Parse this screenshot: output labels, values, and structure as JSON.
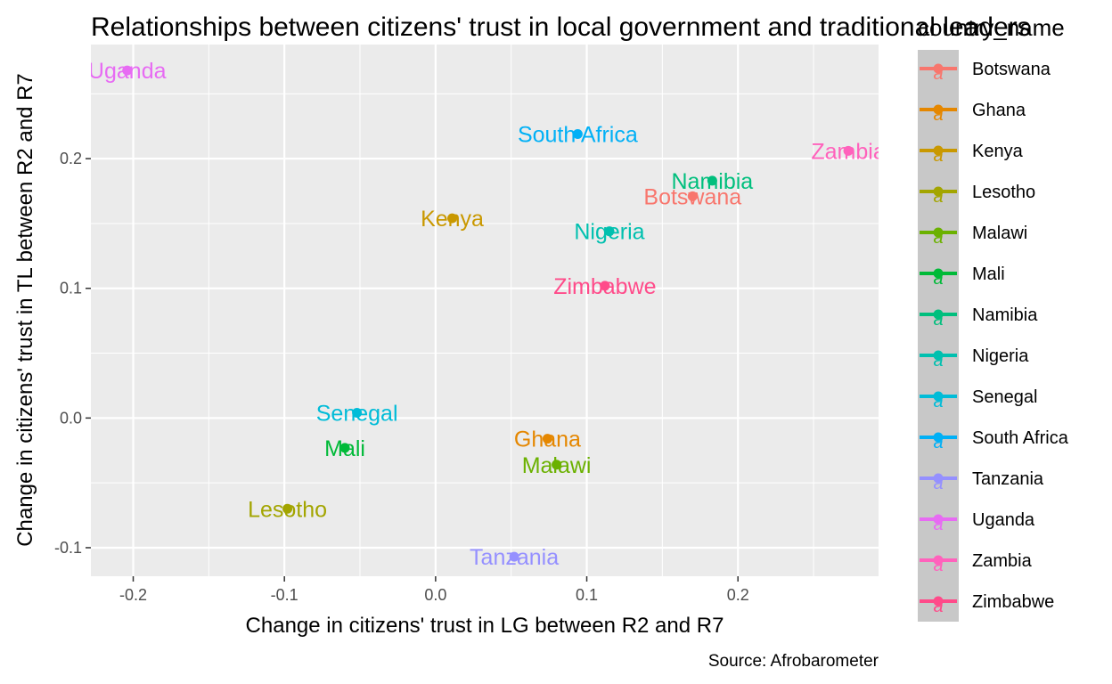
{
  "chart_data": {
    "type": "scatter",
    "title": "Relationships between citizens' trust in local government and traditional leaders",
    "xlabel": "Change in citizens' trust in LG between R2 and R7",
    "ylabel": "Change in citizens' trust in TL between R2 and R7",
    "caption": "Source: Afrobarometer",
    "xlim": [
      -0.228,
      0.293
    ],
    "ylim": [
      -0.122,
      0.288
    ],
    "x_ticks": [
      -0.2,
      -0.1,
      0.0,
      0.1,
      0.2
    ],
    "x_tick_labels": [
      "-0.2",
      "-0.1",
      "0.0",
      "0.1",
      "0.2"
    ],
    "y_ticks": [
      -0.1,
      0.0,
      0.1,
      0.2
    ],
    "y_tick_labels": [
      "-0.1",
      "0.0",
      "0.1",
      "0.2"
    ],
    "grid": true,
    "legend": {
      "title": "country_name",
      "position": "right"
    },
    "points": [
      {
        "country": "Botswana",
        "x": 0.17,
        "y": 0.171,
        "color": "#F8766D"
      },
      {
        "country": "Ghana",
        "x": 0.074,
        "y": -0.016,
        "color": "#E58700"
      },
      {
        "country": "Kenya",
        "x": 0.011,
        "y": 0.154,
        "color": "#C99800"
      },
      {
        "country": "Lesotho",
        "x": -0.098,
        "y": -0.07,
        "color": "#A3A500"
      },
      {
        "country": "Malawi",
        "x": 0.08,
        "y": -0.036,
        "color": "#6BB100"
      },
      {
        "country": "Mali",
        "x": -0.06,
        "y": -0.023,
        "color": "#00BA38"
      },
      {
        "country": "Namibia",
        "x": 0.183,
        "y": 0.183,
        "color": "#00BF7D"
      },
      {
        "country": "Nigeria",
        "x": 0.115,
        "y": 0.144,
        "color": "#00C0AF"
      },
      {
        "country": "Senegal",
        "x": -0.052,
        "y": 0.004,
        "color": "#00BCD8"
      },
      {
        "country": "South Africa",
        "x": 0.094,
        "y": 0.219,
        "color": "#00B0F6"
      },
      {
        "country": "Tanzania",
        "x": 0.052,
        "y": -0.107,
        "color": "#9590FF"
      },
      {
        "country": "Uganda",
        "x": -0.204,
        "y": 0.268,
        "color": "#E76BF3"
      },
      {
        "country": "Zambia",
        "x": 0.273,
        "y": 0.206,
        "color": "#FF62BC"
      },
      {
        "country": "Zimbabwe",
        "x": 0.112,
        "y": 0.102,
        "color": "#FF4B8A"
      }
    ],
    "legend_key_glyph": "a"
  }
}
